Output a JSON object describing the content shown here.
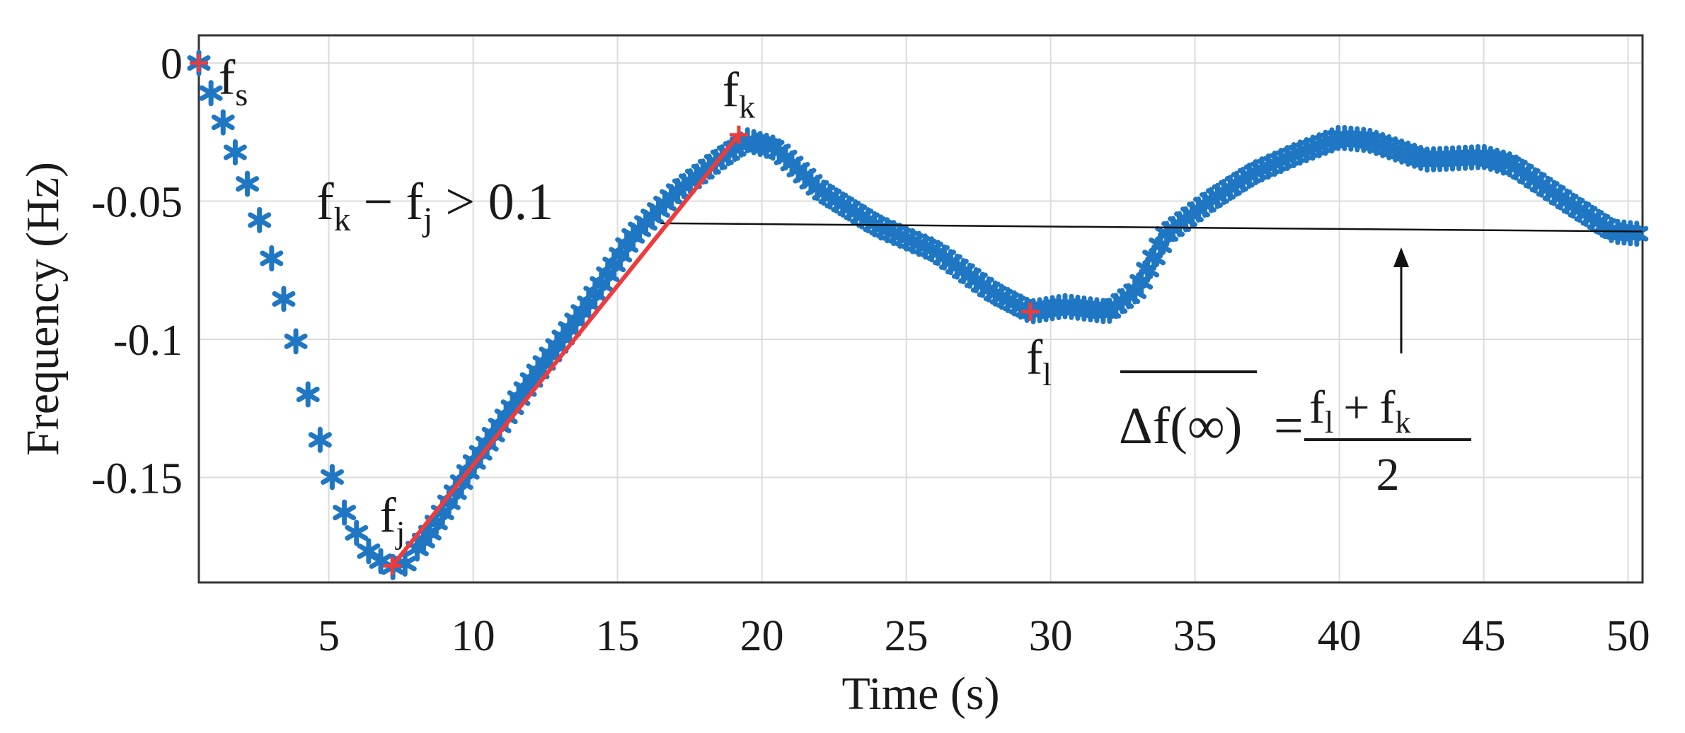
{
  "chart_data": {
    "type": "scatter",
    "xlabel": "Time (s)",
    "ylabel": "Frequency (Hz)",
    "xlim": [
      0.5,
      50.5
    ],
    "ylim": [
      -0.188,
      0.01
    ],
    "xticks": [
      5,
      10,
      15,
      20,
      25,
      30,
      35,
      40,
      45,
      50
    ],
    "xtick_labels": [
      "5",
      "10",
      "15",
      "20",
      "25",
      "30",
      "35",
      "40",
      "45",
      "50"
    ],
    "yticks": [
      0,
      -0.05,
      -0.1,
      -0.15
    ],
    "ytick_labels": [
      "0",
      "-0.05",
      "-0.1",
      "-0.15"
    ],
    "grid": true,
    "legend": "none",
    "colors": {
      "series": "#1f77c4",
      "marker": "#ee3b3b",
      "line": "#ee3b3b",
      "reference": "#111111"
    },
    "series": [
      {
        "marker": "asterisk",
        "curve": [
          [
            0.5,
            0.0
          ],
          [
            1.0,
            -0.013
          ],
          [
            1.6,
            -0.028
          ],
          [
            2.3,
            -0.047
          ],
          [
            3.0,
            -0.07
          ],
          [
            3.8,
            -0.098
          ],
          [
            4.5,
            -0.13
          ],
          [
            5.5,
            -0.162
          ],
          [
            6.3,
            -0.176
          ],
          [
            7.0,
            -0.182
          ],
          [
            7.5,
            -0.183
          ],
          [
            8.5,
            -0.17
          ],
          [
            10.0,
            -0.145
          ],
          [
            12.0,
            -0.115
          ],
          [
            14.0,
            -0.087
          ],
          [
            15.5,
            -0.063
          ],
          [
            17.0,
            -0.047
          ],
          [
            18.5,
            -0.035
          ],
          [
            19.5,
            -0.028
          ],
          [
            20.5,
            -0.031
          ],
          [
            22.0,
            -0.046
          ],
          [
            24.0,
            -0.059
          ],
          [
            26.0,
            -0.068
          ],
          [
            28.0,
            -0.083
          ],
          [
            29.3,
            -0.09
          ],
          [
            30.5,
            -0.088
          ],
          [
            32.0,
            -0.09
          ],
          [
            33.0,
            -0.082
          ],
          [
            34.0,
            -0.062
          ],
          [
            35.5,
            -0.05
          ],
          [
            37.0,
            -0.04
          ],
          [
            38.5,
            -0.033
          ],
          [
            40.0,
            -0.027
          ],
          [
            41.0,
            -0.028
          ],
          [
            43.0,
            -0.035
          ],
          [
            45.0,
            -0.034
          ],
          [
            46.0,
            -0.037
          ],
          [
            48.0,
            -0.051
          ],
          [
            49.5,
            -0.061
          ],
          [
            50.5,
            -0.062
          ]
        ]
      }
    ],
    "points": [
      {
        "label": "f",
        "sub": "s",
        "x": 0.5,
        "y": 0.0
      },
      {
        "label": "f",
        "sub": "j",
        "x": 7.2,
        "y": -0.182
      },
      {
        "label": "f",
        "sub": "k",
        "x": 19.2,
        "y": -0.026
      },
      {
        "label": "f",
        "sub": "l",
        "x": 29.3,
        "y": -0.09
      }
    ],
    "slope_line": {
      "from": [
        7.2,
        -0.182
      ],
      "to": [
        19.2,
        -0.026
      ]
    },
    "reference_line": {
      "from": [
        16.5,
        -0.058
      ],
      "to": [
        50.5,
        -0.061
      ]
    },
    "annotations": {
      "condition": {
        "f1": "f",
        "s1": "k",
        "minus": "−",
        "f2": "f",
        "s2": "j",
        "rest": "> 0.1"
      },
      "formula": {
        "lhs": "Δf(∞)",
        "eq": "=",
        "num_f1": "f",
        "num_s1": "l",
        "num_plus": "+",
        "num_f2": "f",
        "num_s2": "k",
        "den": "2"
      }
    }
  }
}
